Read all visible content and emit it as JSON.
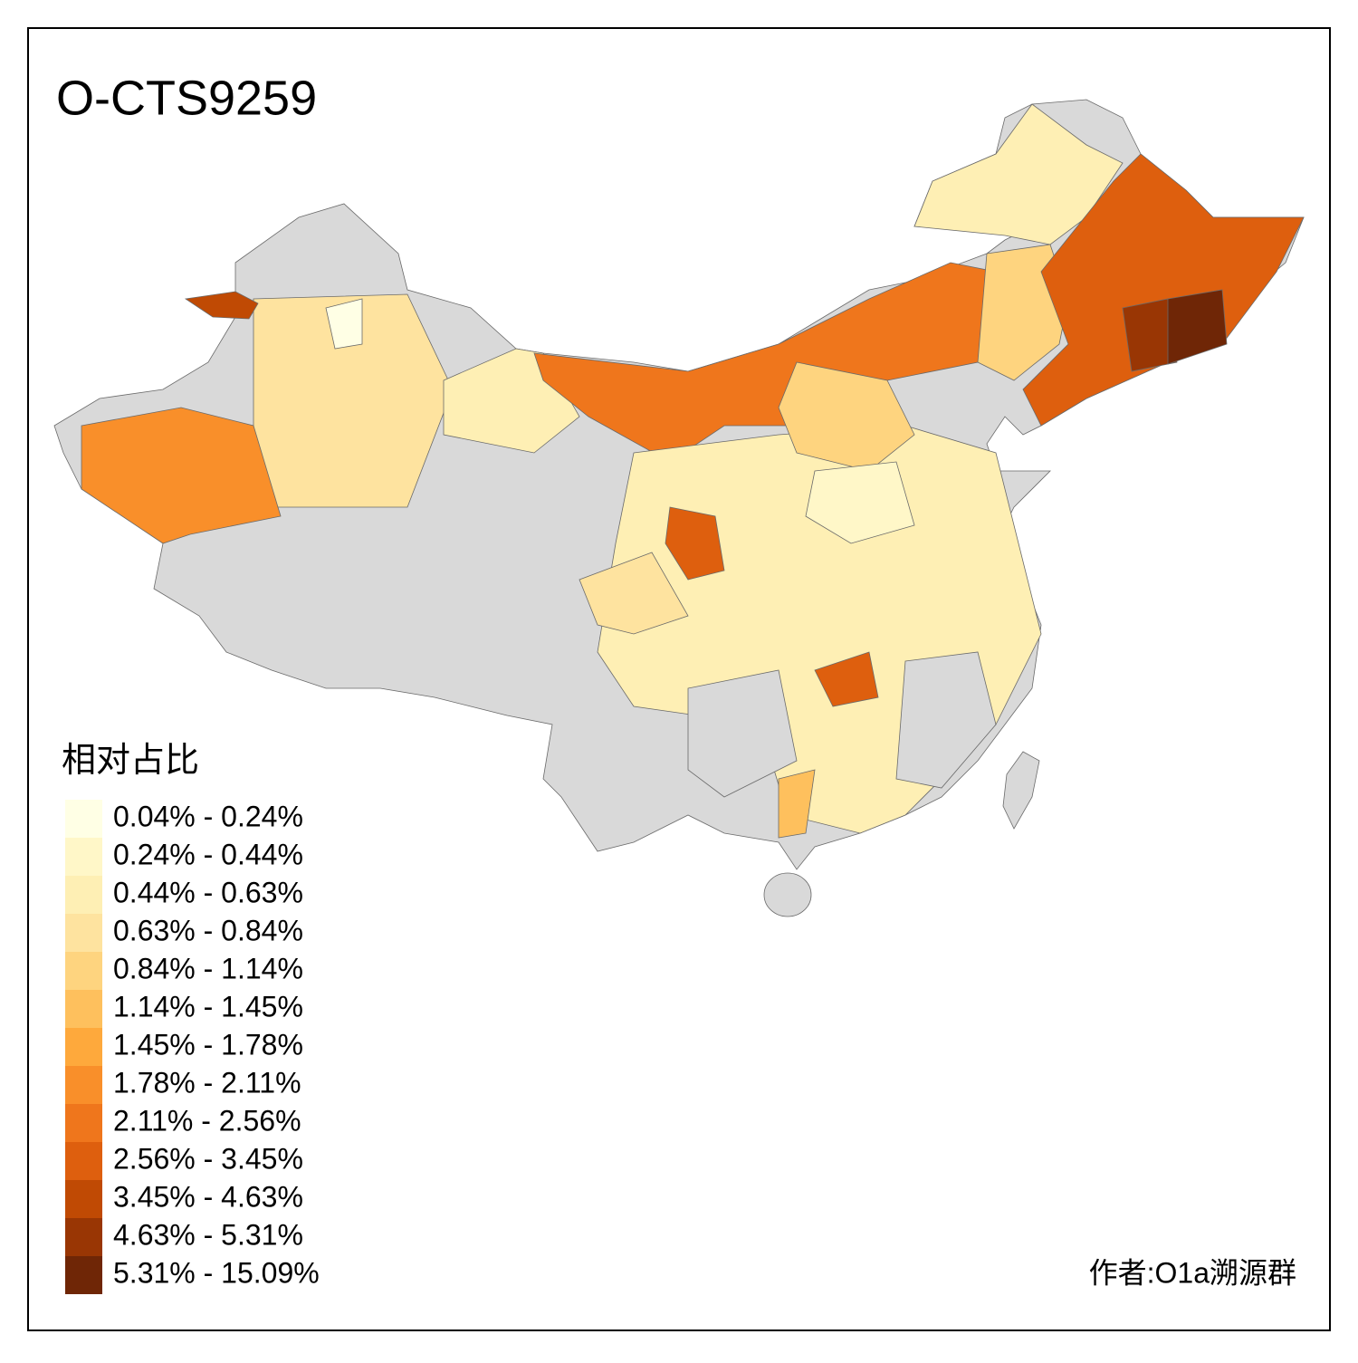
{
  "title": "O-CTS9259",
  "legend": {
    "title": "相对占比",
    "items": [
      {
        "label": "0.04% - 0.24%",
        "color": "#FFFFE5"
      },
      {
        "label": "0.24% - 0.44%",
        "color": "#FFF7C8"
      },
      {
        "label": "0.44% - 0.63%",
        "color": "#FEEFB4"
      },
      {
        "label": "0.63% - 0.84%",
        "color": "#FEE39F"
      },
      {
        "label": "0.84% - 1.14%",
        "color": "#FED47F"
      },
      {
        "label": "1.14% - 1.45%",
        "color": "#FEC05D"
      },
      {
        "label": "1.45% - 1.78%",
        "color": "#FEA93C"
      },
      {
        "label": "1.78% - 2.11%",
        "color": "#F98F2A"
      },
      {
        "label": "2.11% - 2.56%",
        "color": "#EF761C"
      },
      {
        "label": "2.56% - 3.45%",
        "color": "#DE5F0E"
      },
      {
        "label": "3.45% - 4.63%",
        "color": "#C04A04"
      },
      {
        "label": "4.63% - 5.31%",
        "color": "#993604"
      },
      {
        "label": "5.31% - 15.09%",
        "color": "#6F2606"
      }
    ]
  },
  "credit": "作者:O1a溯源群"
}
